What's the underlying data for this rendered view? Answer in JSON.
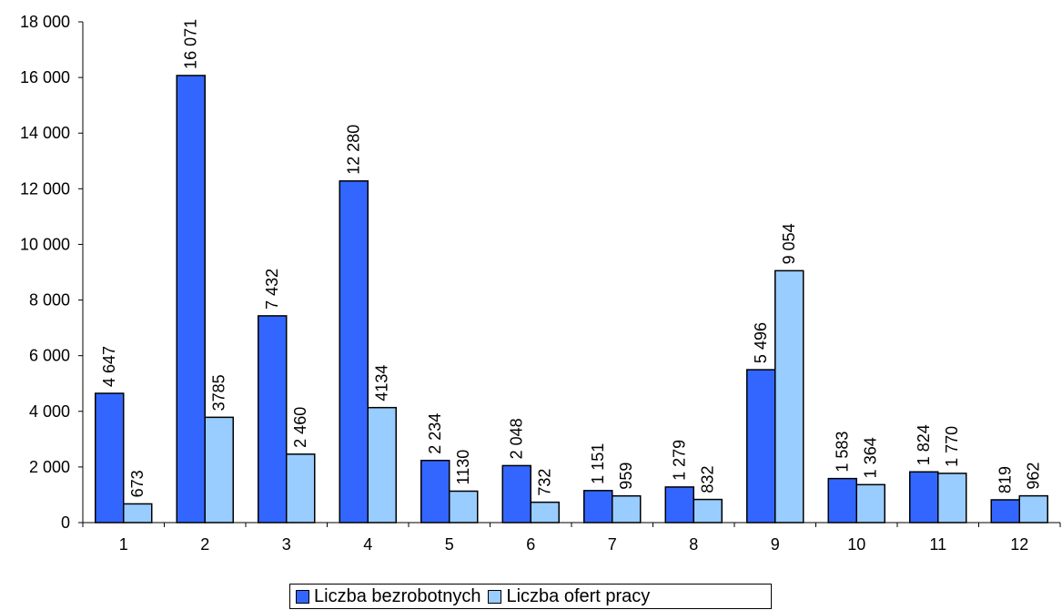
{
  "chart_data": {
    "type": "bar",
    "categories": [
      "1",
      "2",
      "3",
      "4",
      "5",
      "6",
      "7",
      "8",
      "9",
      "10",
      "11",
      "12"
    ],
    "series": [
      {
        "name": "Liczba bezrobotnych",
        "color": "#3366FF",
        "values": [
          4647,
          16071,
          7432,
          12280,
          2234,
          2048,
          1151,
          1279,
          5496,
          1583,
          1824,
          819
        ],
        "labels": [
          "4 647",
          "16 071",
          "7 432",
          "12 280",
          "2 234",
          "2 048",
          "1 151",
          "1 279",
          "5 496",
          "1 583",
          "1 824",
          "819"
        ]
      },
      {
        "name": "Liczba ofert pracy",
        "color": "#99CCFF",
        "values": [
          673,
          3785,
          2460,
          4134,
          1130,
          732,
          959,
          832,
          9054,
          1364,
          1770,
          962
        ],
        "labels": [
          "673",
          "3785",
          "2 460",
          "4134",
          "1130",
          "732",
          "959",
          "832",
          "9 054",
          "1 364",
          "1 770",
          "962"
        ]
      }
    ],
    "ylim": [
      0,
      18000
    ],
    "yticks": [
      0,
      2000,
      4000,
      6000,
      8000,
      10000,
      12000,
      14000,
      16000,
      18000
    ],
    "ytick_labels": [
      "0",
      "2 000",
      "4 000",
      "6 000",
      "8 000",
      "10 000",
      "12 000",
      "14 000",
      "16 000",
      "18 000"
    ],
    "grid": false,
    "legend_position": "bottom"
  }
}
